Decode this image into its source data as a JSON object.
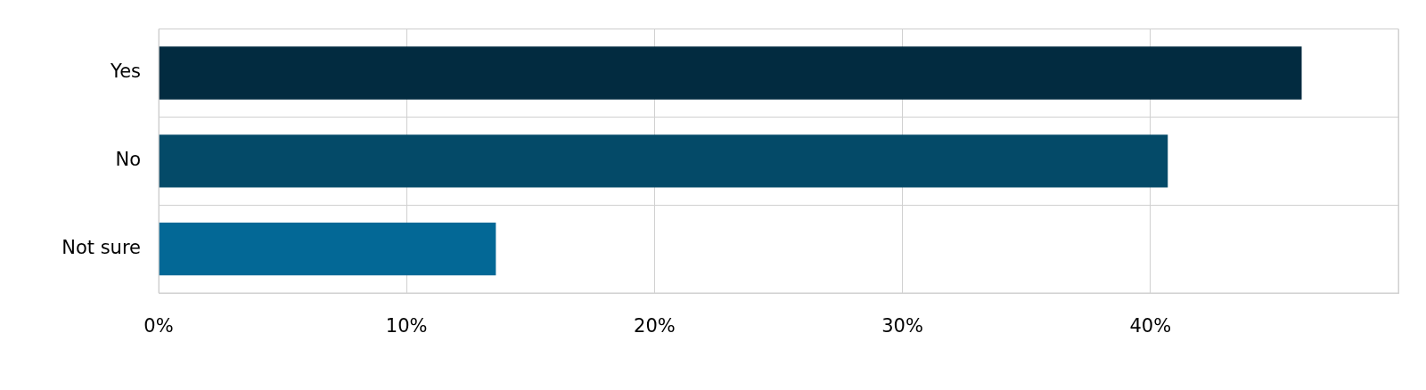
{
  "chart_data": {
    "type": "bar",
    "orientation": "horizontal",
    "categories": [
      "Yes",
      "No",
      "Not sure"
    ],
    "values": [
      46.1,
      40.7,
      13.6
    ],
    "colors": [
      "#022b40",
      "#044a68",
      "#036896"
    ],
    "xlim": [
      0,
      50
    ],
    "xticks": [
      {
        "value": 0,
        "label": "0%"
      },
      {
        "value": 10,
        "label": "10%"
      },
      {
        "value": 20,
        "label": "20%"
      },
      {
        "value": 30,
        "label": "30%"
      },
      {
        "value": 40,
        "label": "40%"
      },
      {
        "value": 50,
        "label": null
      }
    ],
    "grid": true,
    "legend": false
  }
}
